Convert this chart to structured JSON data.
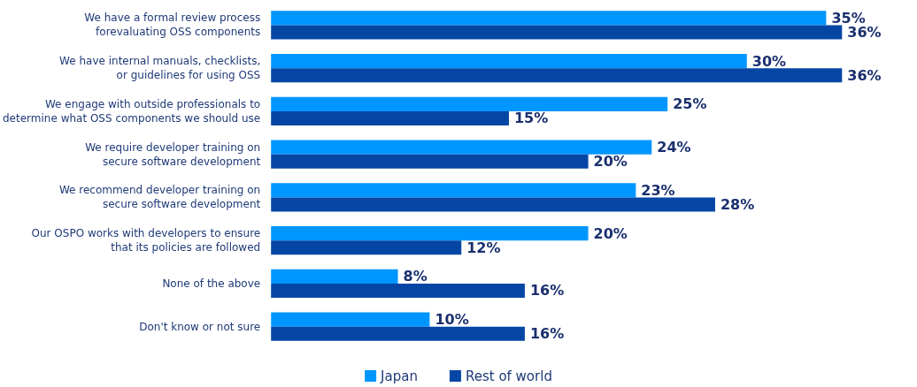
{
  "chart_data": {
    "type": "bar",
    "orientation": "horizontal",
    "legend": "bottom",
    "grid": false,
    "categories": [
      "We have a formal review process\nforevaluating OSS components",
      "We have internal manuals, checklists,\nor guidelines for using OSS",
      "We engage with outside professionals to\ndetermine what OSS components we should use",
      "We require developer training on\nsecure software development",
      "We recommend developer training on\nsecure software development",
      "Our OSPO works with developers to ensure\nthat its policies are followed",
      "None of the above",
      "Don't know or not sure"
    ],
    "series": [
      {
        "name": "Japan",
        "color": "#0096ff",
        "values": [
          35,
          30,
          25,
          24,
          23,
          20,
          8,
          10
        ],
        "value_labels": [
          "35%",
          "30%",
          "25%",
          "24%",
          "23%",
          "20%",
          "8%",
          "10%"
        ]
      },
      {
        "name": "Rest of world",
        "color": "#0546a5",
        "values": [
          36,
          36,
          15,
          20,
          28,
          12,
          16,
          16
        ],
        "value_labels": [
          "36%",
          "36%",
          "15%",
          "20%",
          "28%",
          "12%",
          "16%",
          "16%"
        ]
      }
    ]
  }
}
